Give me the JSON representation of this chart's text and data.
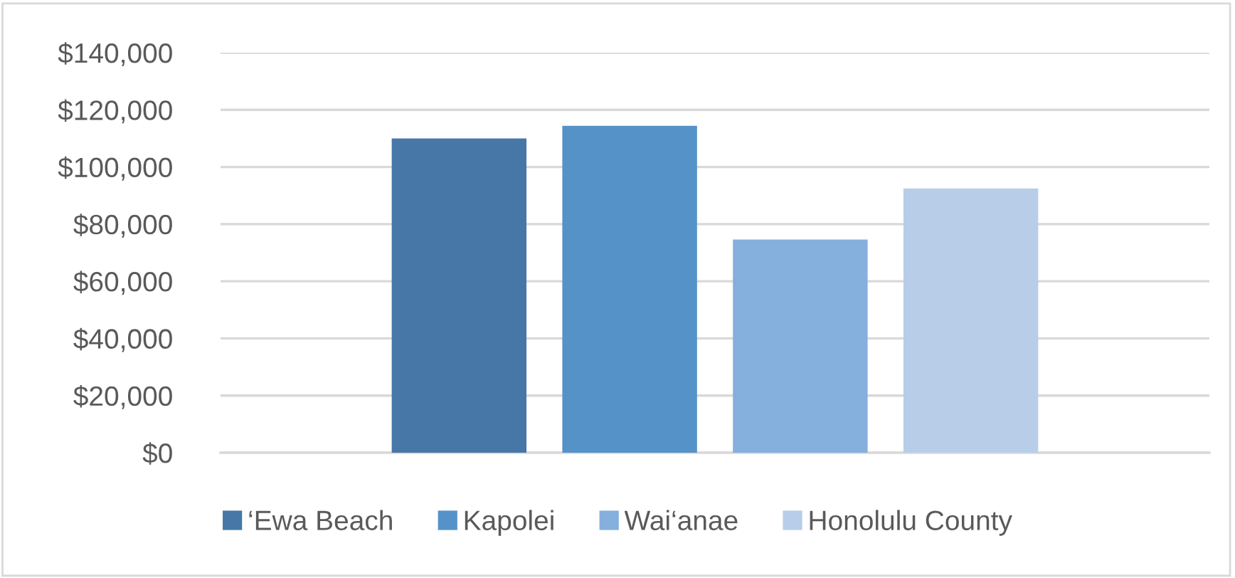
{
  "chart_data": {
    "type": "bar",
    "categories": [
      null
    ],
    "series": [
      {
        "name": "‘Ewa Beach",
        "color": "#4677a7",
        "values": [
          110000
        ]
      },
      {
        "name": "Kapolei",
        "color": "#5592c8",
        "values": [
          114400
        ]
      },
      {
        "name": "Wai‘anae",
        "color": "#85afdd",
        "values": [
          74600
        ]
      },
      {
        "name": "Honolulu County",
        "color": "#b8cde8",
        "values": [
          92500
        ]
      }
    ],
    "ylim": [
      0,
      140000
    ],
    "yticks": [
      {
        "value": 0,
        "label": "$0"
      },
      {
        "value": 20000,
        "label": "$20,000"
      },
      {
        "value": 40000,
        "label": "$40,000"
      },
      {
        "value": 60000,
        "label": "$60,000"
      },
      {
        "value": 80000,
        "label": "$80,000"
      },
      {
        "value": 100000,
        "label": "$100,000"
      },
      {
        "value": 120000,
        "label": "$120,000"
      },
      {
        "value": 140000,
        "label": "$140,000"
      }
    ],
    "grid": "y",
    "legend": "bottom"
  }
}
